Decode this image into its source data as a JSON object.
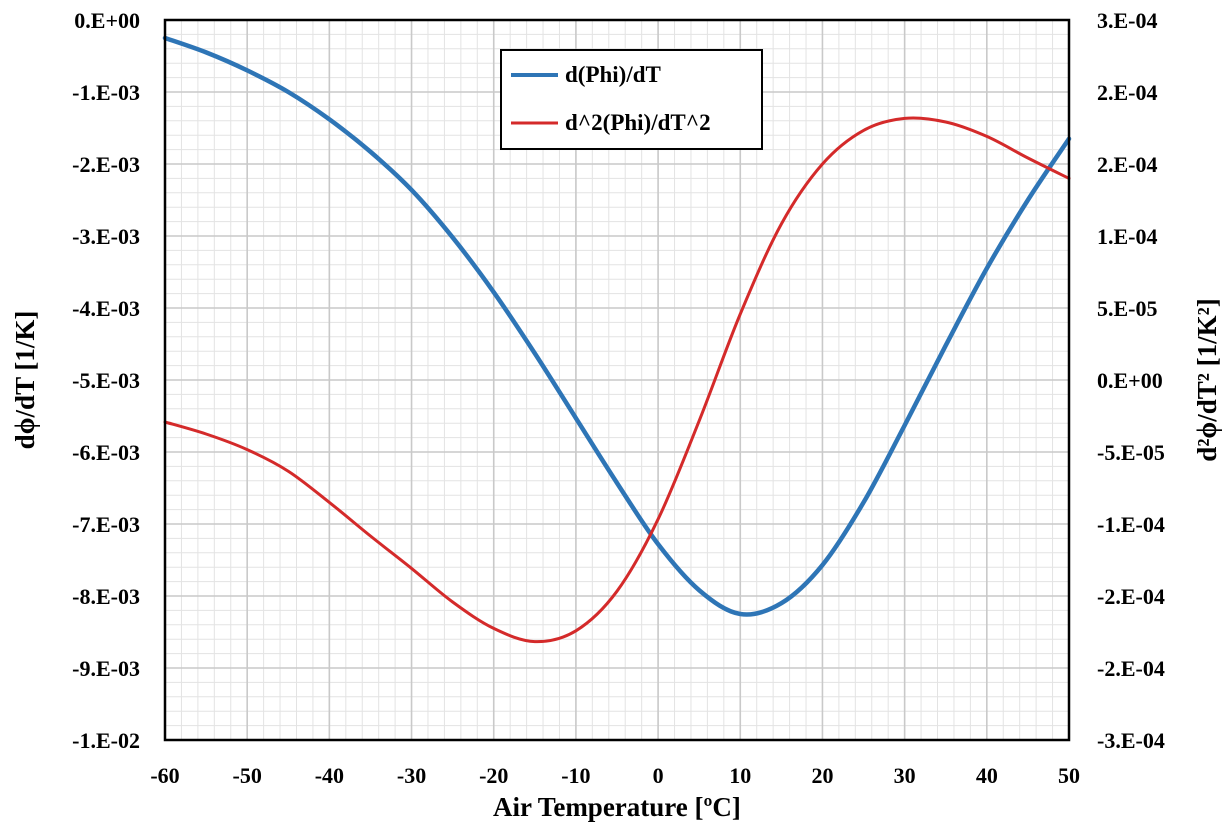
{
  "chart_data": {
    "type": "line",
    "xlabel": "Air Temperature [ºC]",
    "ylabel_left": "dϕ/dT [1/K]",
    "ylabel_right": "d²ϕ/dT² [1/K²]",
    "xlim": [
      -60,
      50
    ],
    "ylim_left": [
      -0.01,
      0
    ],
    "ylim_right": [
      -0.0003,
      0.0003
    ],
    "x_ticks": [
      "-60",
      "-50",
      "-40",
      "-30",
      "-20",
      "-10",
      "0",
      "10",
      "20",
      "30",
      "40",
      "50"
    ],
    "y_left_ticks": [
      "0.E+00",
      "-1.E-03",
      "-2.E-03",
      "-3.E-03",
      "-4.E-03",
      "-5.E-03",
      "-6.E-03",
      "-7.E-03",
      "-8.E-03",
      "-9.E-03",
      "-1.E-02"
    ],
    "y_right_ticks": [
      "3.E-04",
      "2.E-04",
      "2.E-04",
      "1.E-04",
      "5.E-05",
      "0.E+00",
      "-5.E-05",
      "-1.E-04",
      "-2.E-04",
      "-2.E-04",
      "-3.E-04"
    ],
    "grid": true,
    "legend_position": "top-center",
    "series": [
      {
        "name": "d(Phi)/dT",
        "axis": "left",
        "color": "#2e75b6",
        "x": [
          -60,
          -55,
          -50,
          -45,
          -40,
          -35,
          -30,
          -25,
          -20,
          -15,
          -10,
          -5,
          0,
          5,
          10,
          15,
          20,
          25,
          30,
          35,
          40,
          45,
          50
        ],
        "y": [
          -0.00025,
          -0.00045,
          -0.0007,
          -0.001,
          -0.00138,
          -0.00183,
          -0.00236,
          -0.00302,
          -0.00378,
          -0.00463,
          -0.00553,
          -0.00643,
          -0.00728,
          -0.00792,
          -0.00825,
          -0.0081,
          -0.00757,
          -0.0067,
          -0.00563,
          -0.00452,
          -0.00345,
          -0.0025,
          -0.00165
        ]
      },
      {
        "name": "d^2(Phi)/dT^2",
        "axis": "right",
        "color": "#d42a2a",
        "x": [
          -60,
          -55,
          -50,
          -45,
          -40,
          -35,
          -30,
          -25,
          -20,
          -15,
          -10,
          -5,
          0,
          5,
          10,
          15,
          20,
          25,
          30,
          35,
          40,
          45,
          50
        ],
        "y": [
          -3.5e-05,
          -4.5e-05,
          -5.8e-05,
          -7.6e-05,
          -0.000102,
          -0.00013,
          -0.000157,
          -0.000185,
          -0.000207,
          -0.000218,
          -0.000209,
          -0.000176,
          -0.000116,
          -3.4e-05,
          5.5e-05,
          0.00013,
          0.00018,
          0.000208,
          0.000218,
          0.000215,
          0.000203,
          0.000185,
          0.000168
        ]
      }
    ]
  }
}
